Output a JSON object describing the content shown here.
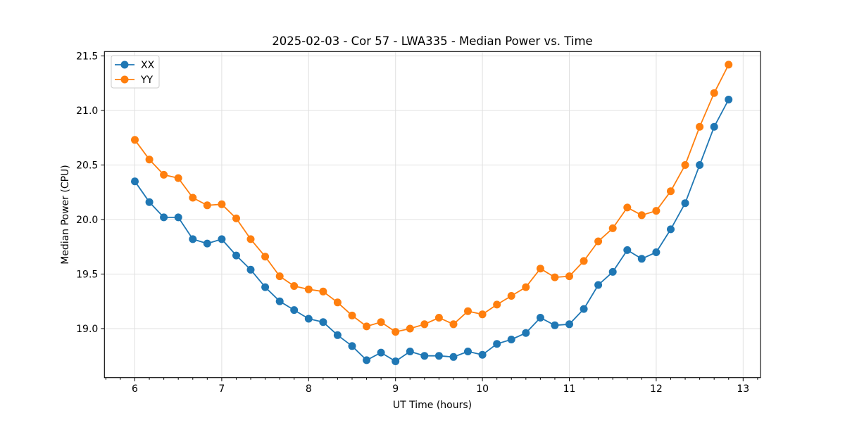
{
  "figure": {
    "background": "#ffffff"
  },
  "chart_data": {
    "type": "line",
    "title": "2025-02-03 - Cor 57 - LWA335 - Median Power vs. Time",
    "xlabel": "UT Time (hours)",
    "ylabel": "Median Power (CPU)",
    "xlim": [
      5.65,
      13.2
    ],
    "ylim": [
      18.55,
      21.54
    ],
    "x_major_ticks": [
      6,
      7,
      8,
      9,
      10,
      11,
      12,
      13
    ],
    "x_minor_step": 0.1666667,
    "y_major_ticks": [
      19.0,
      19.5,
      20.0,
      20.5,
      21.0,
      21.5
    ],
    "grid": true,
    "grid_color": "#e0e0e0",
    "legend_position": "upper-left",
    "x": [
      6.0,
      6.167,
      6.333,
      6.5,
      6.667,
      6.833,
      7.0,
      7.167,
      7.333,
      7.5,
      7.667,
      7.833,
      8.0,
      8.167,
      8.333,
      8.5,
      8.667,
      8.833,
      9.0,
      9.167,
      9.333,
      9.5,
      9.667,
      9.833,
      10.0,
      10.167,
      10.333,
      10.5,
      10.667,
      10.833,
      11.0,
      11.167,
      11.333,
      11.5,
      11.667,
      11.833,
      12.0,
      12.167,
      12.333,
      12.5,
      12.667,
      12.833
    ],
    "series": [
      {
        "name": "XX",
        "color": "#1f77b4",
        "values": [
          20.35,
          20.16,
          20.02,
          20.02,
          19.82,
          19.78,
          19.82,
          19.67,
          19.54,
          19.38,
          19.25,
          19.17,
          19.09,
          19.06,
          18.94,
          18.84,
          18.71,
          18.78,
          18.7,
          18.79,
          18.75,
          18.75,
          18.74,
          18.79,
          18.76,
          18.86,
          18.9,
          18.96,
          19.1,
          19.03,
          19.04,
          19.18,
          19.4,
          19.52,
          19.72,
          19.64,
          19.7,
          19.91,
          20.15,
          20.5,
          20.85,
          21.1
        ]
      },
      {
        "name": "YY",
        "color": "#ff7f0e",
        "values": [
          20.73,
          20.55,
          20.41,
          20.38,
          20.2,
          20.13,
          20.14,
          20.01,
          19.82,
          19.66,
          19.48,
          19.39,
          19.36,
          19.34,
          19.24,
          19.12,
          19.02,
          19.06,
          18.97,
          19.0,
          19.04,
          19.1,
          19.04,
          19.16,
          19.13,
          19.22,
          19.3,
          19.38,
          19.55,
          19.47,
          19.48,
          19.62,
          19.8,
          19.92,
          20.11,
          20.04,
          20.08,
          20.26,
          20.5,
          20.85,
          21.16,
          21.42
        ]
      }
    ]
  }
}
